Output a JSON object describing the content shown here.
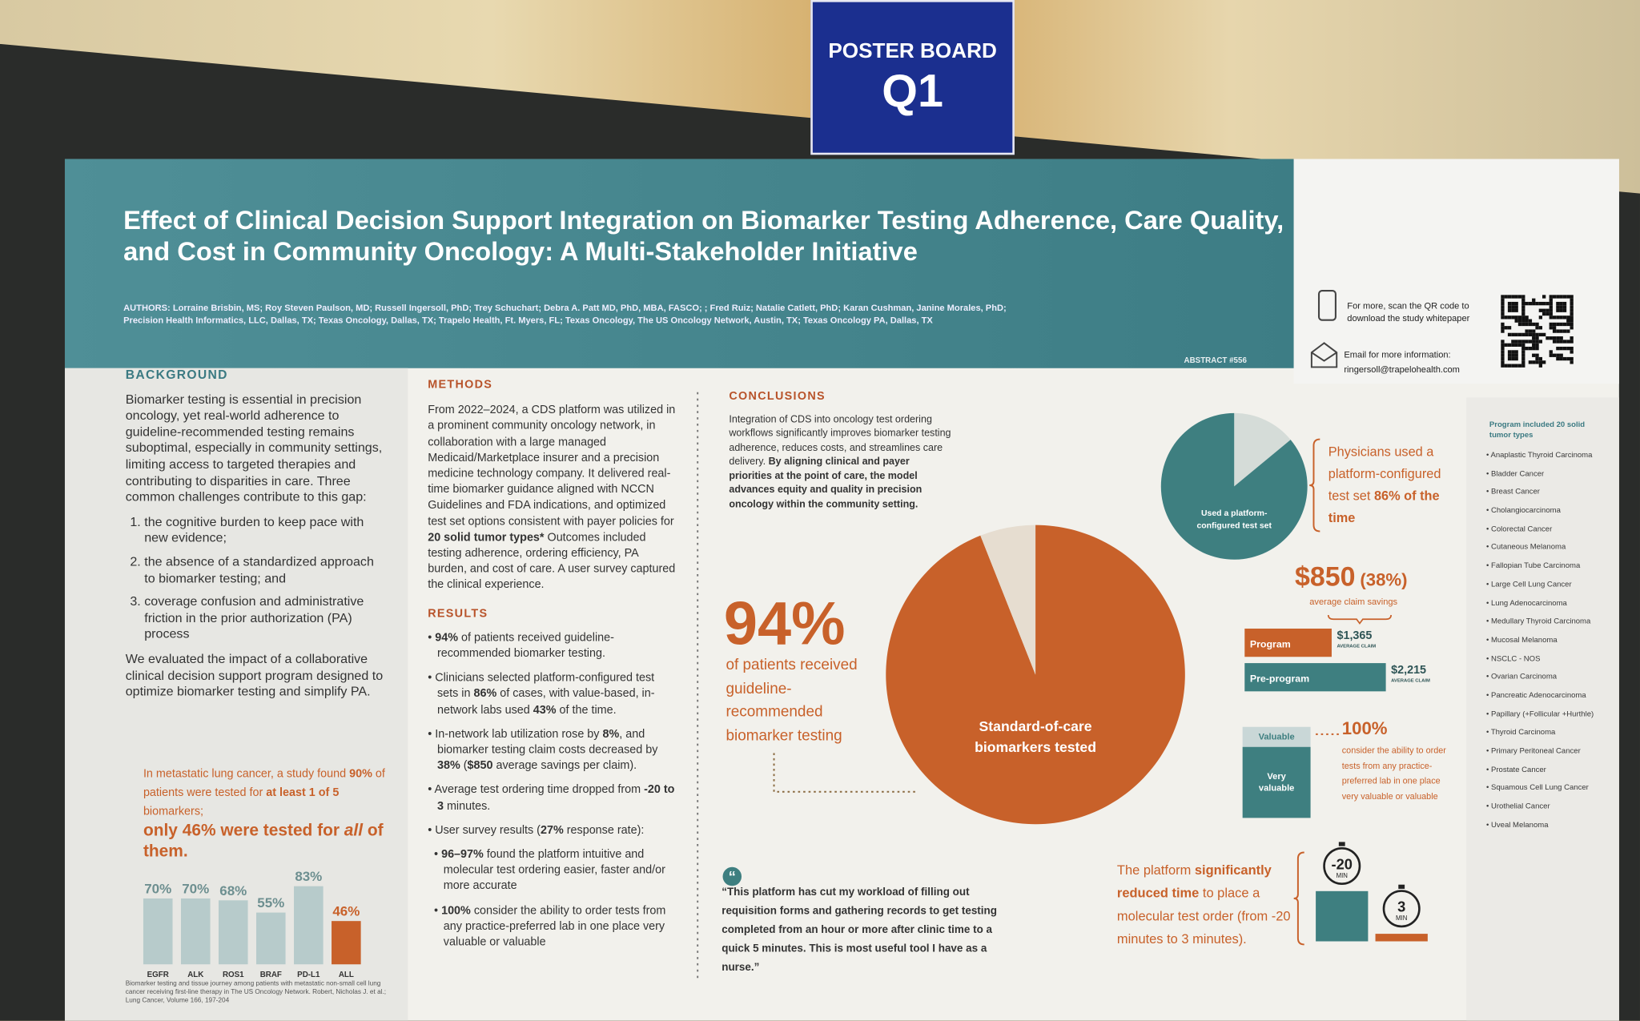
{
  "sign": {
    "label": "POSTER BOARD",
    "code": "Q1"
  },
  "header": {
    "title": "Effect of Clinical Decision Support Integration on Biomarker Testing Adherence, Care Quality, and Cost in Community Oncology: A Multi-Stakeholder Initiative",
    "authors_label": "AUTHORS:",
    "authors": "Lorraine Brisbin, MS; Roy Steven Paulson, MD; Russell Ingersoll, PhD; Trey Schuchart; Debra A. Patt MD, PhD, MBA, FASCO; ; Fred Ruiz; Natalie Catlett, PhD; Karan Cushman, Janine Morales, PhD;",
    "affiliations": "Precision Health Informatics, LLC, Dallas, TX; Texas Oncology, Dallas, TX; Trapelo Health, Ft. Myers, FL; Texas Oncology, The US Oncology Network, Austin, TX; Texas Oncology PA, Dallas, TX",
    "abstract": "ABSTRACT #556",
    "qr_text": "For more, scan the QR code to download the study whitepaper",
    "email_label": "Email for more information:",
    "email": "ringersoll@trapelohealth.com"
  },
  "background": {
    "heading": "BACKGROUND",
    "intro": "Biomarker testing is essential in precision oncology, yet real-world adherence to guideline-recommended testing remains suboptimal, especially in community settings, limiting access to targeted therapies and contributing to disparities in care. Three common challenges contribute to this gap:",
    "items": [
      "the cognitive burden to keep pace with new evidence;",
      "the absence of a standardized approach to biomarker testing; and",
      "coverage confusion and administrative friction in the prior authorization (PA) process"
    ],
    "closing": "We evaluated the impact of a collaborative clinical decision support program designed to optimize biomarker testing and simplify PA.",
    "callout": [
      "In metastatic lung cancer, a study found ",
      {
        "b": "90%"
      },
      " of patients were tested for ",
      {
        "b": "at least 1 of 5"
      },
      " biomarkers;"
    ],
    "callout_big": [
      "only 46% were tested for ",
      {
        "i": "all"
      },
      " of them."
    ],
    "footnote": "Biomarker testing and tissue journey among patients with metastatic non-small cell lung cancer receiving first-line therapy in The US Oncology Network. Robert, Nicholas J. et al.; Lung Cancer, Volume 166, 197-204"
  },
  "methods": {
    "heading": "METHODS",
    "text": [
      "From 2022–2024, a CDS platform was utilized in a prominent community oncology network, in collaboration with a large managed Medicaid/Marketplace insurer and a precision medicine technology company. It delivered real-time biomarker guidance aligned with NCCN Guidelines and FDA indications, and optimized test set options consistent with payer policies for ",
      {
        "b": "20 solid tumor types*"
      },
      " Outcomes included testing adherence, ordering efficiency, PA burden, and cost of care. A user survey captured the clinical experience."
    ]
  },
  "results": {
    "heading": "RESULTS",
    "items": [
      [
        {
          "b": "94%"
        },
        " of patients received guideline-recommended biomarker testing."
      ],
      [
        "Clinicians selected platform-configured test sets in ",
        {
          "b": "86%"
        },
        " of cases, with value-based, in-network labs used ",
        {
          "b": "43%"
        },
        " of the time."
      ],
      [
        "In-network lab utilization rose by ",
        {
          "b": "8%"
        },
        ", and biomarker testing claim costs decreased by ",
        {
          "b": "38%"
        },
        " (",
        {
          "b": "$850"
        },
        " average savings per claim)."
      ],
      [
        "Average test ordering time dropped from ",
        {
          "b": "-20 to 3"
        },
        " minutes."
      ],
      [
        "User survey results (",
        {
          "b": "27%"
        },
        " response rate):"
      ]
    ],
    "subitems": [
      [
        {
          "b": "96–97%"
        },
        " found the platform intuitive and molecular test ordering easier, faster and/or more accurate"
      ],
      [
        {
          "b": "100%"
        },
        " consider the ability to order tests from any practice-preferred lab in one place very valuable or valuable"
      ]
    ]
  },
  "conclusions": {
    "heading": "CONCLUSIONS",
    "text": [
      "Integration of CDS into oncology test ordering workflows significantly improves biomarker testing adherence, reduces costs, and streamlines care delivery. ",
      {
        "b": "By aligning clinical and payer priorities at the point of care, the model advances equity and quality in precision oncology within the community setting."
      }
    ]
  },
  "highlight": {
    "value": "94%",
    "text": "of patients received guideline-recommended biomarker testing"
  },
  "quote": "“This platform has cut my workload of filling out requisition forms and gathering records to get testing completed from an hour or more after clinic time to a quick 5 minutes. This is most useful tool I have as a nurse.”",
  "physicians": [
    "Physicians used a platform-configured test set ",
    {
      "b": "86% of the time"
    }
  ],
  "savings": {
    "amount": "$850",
    "percent": "(38%)",
    "caption": "average claim savings"
  },
  "survey": {
    "value": "100%",
    "text": "consider the ability to order tests from any practice-preferred lab in one place very valuable or valuable"
  },
  "time": [
    "The platform ",
    {
      "b": "significantly reduced time"
    },
    " to place a molecular test order (from -20 minutes to 3 minutes)."
  ],
  "tumors": {
    "heading": "Program included 20 solid tumor types",
    "items": [
      "Anaplastic Thyroid Carcinoma",
      "Bladder Cancer",
      "Breast Cancer",
      "Cholangiocarcinoma",
      "Colorectal Cancer",
      "Cutaneous Melanoma",
      "Fallopian Tube Carcinoma",
      "Large Cell Lung Cancer",
      "Lung Adenocarcinoma",
      "Medullary Thyroid Carcinoma",
      "Mucosal Melanoma",
      "NSCLC - NOS",
      "Ovarian Carcinoma",
      "Pancreatic Adenocarcinoma",
      "Papillary (+Follicular +Hurthle)",
      "Thyroid Carcinoma",
      "Primary Peritoneal Cancer",
      "Prostate Cancer",
      "Squamous Cell Lung Cancer",
      "Urothelial Cancer",
      "Uveal Melanoma"
    ]
  },
  "chart_data": [
    {
      "type": "bar",
      "categories": [
        "EGFR",
        "ALK",
        "ROS1",
        "BRAF",
        "PD-L1",
        "ALL"
      ],
      "values": [
        70,
        70,
        68,
        55,
        83,
        46
      ],
      "value_labels": [
        "70%",
        "70%",
        "68%",
        "55%",
        "83%",
        "46%"
      ],
      "colors": [
        "#b7cbcb",
        "#b7cbcb",
        "#b7cbcb",
        "#b7cbcb",
        "#b7cbcb",
        "#c8612a"
      ]
    },
    {
      "type": "pie",
      "categories": [
        "Standard-of-care biomarkers tested",
        null
      ],
      "values": [
        94,
        6
      ],
      "colors": [
        "#c8612a",
        "#e6ddd0"
      ]
    },
    {
      "type": "pie",
      "categories": [
        null,
        "Used a platform-configured test set"
      ],
      "values": [
        14,
        86
      ],
      "colors": [
        "#d5dcd8",
        "#3e7f80"
      ]
    },
    {
      "type": "hbar",
      "categories": [
        "Program",
        "Pre-program"
      ],
      "values": [
        1365,
        2215
      ],
      "value_labels": [
        "$1,365",
        "$2,215"
      ],
      "value_caption": "AVERAGE CLAIM",
      "colors": [
        "#c8612a",
        "#3e7f80"
      ]
    },
    {
      "type": "stacked",
      "categories": [
        "Valuable",
        "Very valuable"
      ],
      "values": [
        22,
        78
      ],
      "colors": [
        "#c9d7d7",
        "#3e7f80"
      ]
    },
    {
      "type": "timer",
      "values": [
        -20,
        3
      ],
      "value_labels": [
        "-20",
        "3"
      ],
      "unit": "MIN",
      "colors": [
        "#3e7f80",
        "#c8612a"
      ]
    }
  ]
}
